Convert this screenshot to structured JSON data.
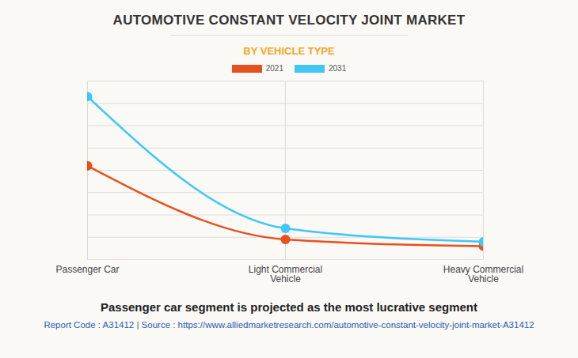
{
  "chart_data": {
    "type": "line",
    "title": "AUTOMOTIVE CONSTANT VELOCITY JOINT MARKET",
    "subtitle": "BY VEHICLE TYPE",
    "caption": "Passenger car segment is projected as the most lucrative segment",
    "source": "Report Code : A31412  |  Source : https://www.alliedmarketresearch.com/automotive-constant-velocity-joint-market-A31412",
    "categories": [
      "Passenger Car",
      "Light Commercial Vehicle",
      "Heavy Commercial Vehicle"
    ],
    "series": [
      {
        "name": "2021",
        "color": "#e8501c",
        "values": [
          4.2,
          0.9,
          0.6
        ]
      },
      {
        "name": "2031",
        "color": "#3fc8f5",
        "values": [
          7.3,
          1.4,
          0.8
        ]
      }
    ],
    "ylim": [
      0,
      8
    ],
    "yticks": [
      0,
      1,
      2,
      3,
      4,
      5,
      6,
      7,
      8
    ],
    "grid": true,
    "tick_labels": "x",
    "legend": "top",
    "marker": "circle"
  }
}
